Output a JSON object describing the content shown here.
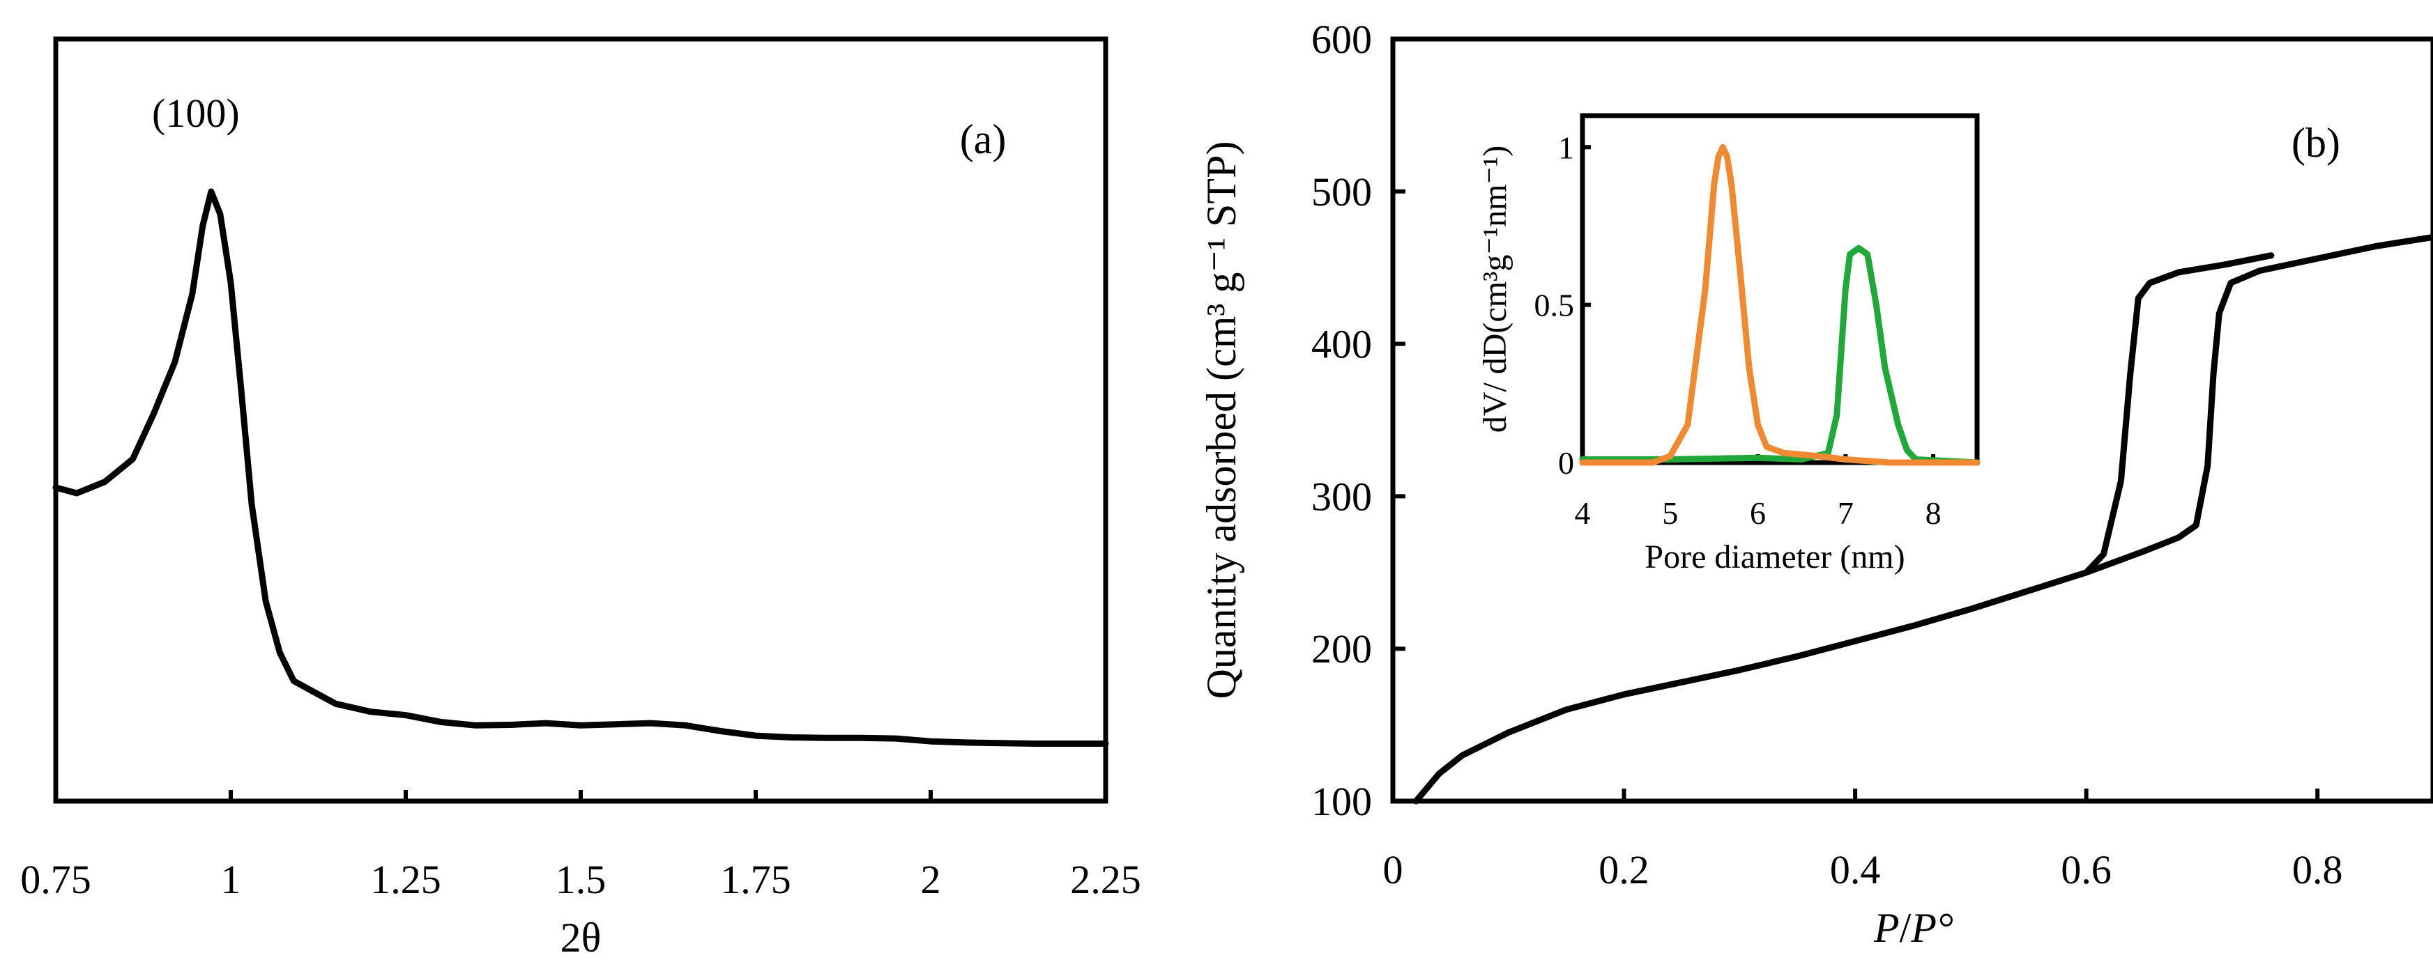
{
  "chart_data": [
    {
      "panel": "a",
      "type": "line",
      "panel_label": "(a)",
      "title": "",
      "xlabel": "2θ",
      "ylabel": "",
      "xlim": [
        0.75,
        2.25
      ],
      "ylim": [
        0,
        100
      ],
      "x_ticks": [
        "0.75",
        "1",
        "1.25",
        "1.5",
        "1.75",
        "2",
        "2.25"
      ],
      "x_tick_values": [
        0.75,
        1,
        1.25,
        1.5,
        1.75,
        2,
        2.25
      ],
      "y_ticks_shown": false,
      "peak_annotation": {
        "text": "(100)",
        "x": 0.97,
        "y": 100
      },
      "series": [
        {
          "name": "XRD pattern",
          "color": "#000000",
          "points": [
            [
              0.75,
              48
            ],
            [
              0.78,
              47
            ],
            [
              0.82,
              49
            ],
            [
              0.86,
              53
            ],
            [
              0.89,
              61
            ],
            [
              0.92,
              70
            ],
            [
              0.945,
              82
            ],
            [
              0.96,
              94
            ],
            [
              0.972,
              100
            ],
            [
              0.985,
              96
            ],
            [
              1.0,
              84
            ],
            [
              1.015,
              65
            ],
            [
              1.03,
              45
            ],
            [
              1.05,
              28
            ],
            [
              1.07,
              19
            ],
            [
              1.09,
              14
            ],
            [
              1.12,
              12
            ],
            [
              1.15,
              10
            ],
            [
              1.2,
              8.6
            ],
            [
              1.25,
              8
            ],
            [
              1.3,
              6.8
            ],
            [
              1.35,
              6.2
            ],
            [
              1.4,
              6.3
            ],
            [
              1.45,
              6.6
            ],
            [
              1.5,
              6.2
            ],
            [
              1.55,
              6.4
            ],
            [
              1.6,
              6.6
            ],
            [
              1.65,
              6.2
            ],
            [
              1.7,
              5.2
            ],
            [
              1.75,
              4.4
            ],
            [
              1.8,
              4.1
            ],
            [
              1.85,
              4.0
            ],
            [
              1.9,
              4.0
            ],
            [
              1.95,
              3.9
            ],
            [
              2.0,
              3.4
            ],
            [
              2.05,
              3.2
            ],
            [
              2.1,
              3.1
            ],
            [
              2.15,
              3.0
            ],
            [
              2.2,
              3.0
            ],
            [
              2.25,
              3.0
            ]
          ]
        }
      ]
    },
    {
      "panel": "b",
      "type": "line",
      "panel_label": "(b)",
      "title": "",
      "xlabel_italic": "P",
      "xlabel_slash": "/",
      "xlabel_denominator": "P°",
      "ylabel": "Quantity adsorbed (cm³ g⁻¹ STP)",
      "xlim": [
        0,
        0.9
      ],
      "ylim": [
        100,
        600
      ],
      "x_ticks": [
        "0",
        "0.2",
        "0.4",
        "0.6",
        "0.8"
      ],
      "x_tick_values": [
        0,
        0.2,
        0.4,
        0.6,
        0.8
      ],
      "y_ticks": [
        "100",
        "200",
        "300",
        "400",
        "500",
        "600"
      ],
      "y_tick_values": [
        100,
        200,
        300,
        400,
        500,
        600
      ],
      "series": [
        {
          "name": "Adsorption branch",
          "color": "#000000",
          "points": [
            [
              0.02,
              100
            ],
            [
              0.04,
              118
            ],
            [
              0.06,
              130
            ],
            [
              0.1,
              145
            ],
            [
              0.15,
              160
            ],
            [
              0.2,
              170
            ],
            [
              0.25,
              178
            ],
            [
              0.3,
              186
            ],
            [
              0.35,
              195
            ],
            [
              0.4,
              205
            ],
            [
              0.45,
              215
            ],
            [
              0.5,
              226
            ],
            [
              0.55,
              238
            ],
            [
              0.6,
              250
            ],
            [
              0.65,
              264
            ],
            [
              0.68,
              273
            ],
            [
              0.695,
              281
            ],
            [
              0.705,
              320
            ],
            [
              0.71,
              380
            ],
            [
              0.715,
              420
            ],
            [
              0.725,
              440
            ],
            [
              0.75,
              448
            ],
            [
              0.8,
              456
            ],
            [
              0.85,
              464
            ],
            [
              0.9,
              470
            ]
          ]
        },
        {
          "name": "Desorption branch",
          "color": "#000000",
          "points": [
            [
              0.6,
              250
            ],
            [
              0.615,
              262
            ],
            [
              0.63,
              310
            ],
            [
              0.638,
              380
            ],
            [
              0.645,
              430
            ],
            [
              0.655,
              440
            ],
            [
              0.68,
              447
            ],
            [
              0.72,
              452
            ],
            [
              0.76,
              458
            ]
          ]
        }
      ]
    },
    {
      "panel": "b-inset",
      "type": "line",
      "title": "",
      "xlabel": "Pore diameter (nm)",
      "ylabel": "dV/ dD(cm³g⁻¹nm⁻¹)",
      "xlim": [
        4,
        8.5
      ],
      "ylim": [
        0,
        1.1
      ],
      "x_ticks": [
        "4",
        "5",
        "6",
        "7",
        "8"
      ],
      "x_tick_values": [
        4,
        5,
        6,
        7,
        8
      ],
      "y_ticks": [
        "0",
        "0.5",
        "1"
      ],
      "y_tick_values": [
        0,
        0.5,
        1
      ],
      "series": [
        {
          "name": "Orange distribution",
          "color": "#f08a32",
          "points": [
            [
              4.0,
              0.0
            ],
            [
              4.8,
              0.0
            ],
            [
              5.0,
              0.02
            ],
            [
              5.2,
              0.12
            ],
            [
              5.4,
              0.55
            ],
            [
              5.5,
              0.88
            ],
            [
              5.55,
              0.97
            ],
            [
              5.6,
              1.0
            ],
            [
              5.65,
              0.97
            ],
            [
              5.7,
              0.88
            ],
            [
              5.8,
              0.6
            ],
            [
              5.9,
              0.3
            ],
            [
              6.0,
              0.12
            ],
            [
              6.1,
              0.05
            ],
            [
              6.3,
              0.03
            ],
            [
              6.7,
              0.02
            ],
            [
              7.0,
              0.01
            ],
            [
              7.5,
              0.0
            ],
            [
              8.5,
              0.0
            ]
          ]
        },
        {
          "name": "Green distribution",
          "color": "#22a83a",
          "points": [
            [
              4.0,
              0.01
            ],
            [
              5.0,
              0.01
            ],
            [
              6.0,
              0.015
            ],
            [
              6.5,
              0.01
            ],
            [
              6.8,
              0.03
            ],
            [
              6.9,
              0.15
            ],
            [
              7.0,
              0.55
            ],
            [
              7.05,
              0.66
            ],
            [
              7.15,
              0.68
            ],
            [
              7.25,
              0.66
            ],
            [
              7.35,
              0.5
            ],
            [
              7.45,
              0.3
            ],
            [
              7.6,
              0.12
            ],
            [
              7.7,
              0.04
            ],
            [
              7.8,
              0.01
            ],
            [
              8.5,
              0.0
            ]
          ]
        }
      ]
    }
  ]
}
